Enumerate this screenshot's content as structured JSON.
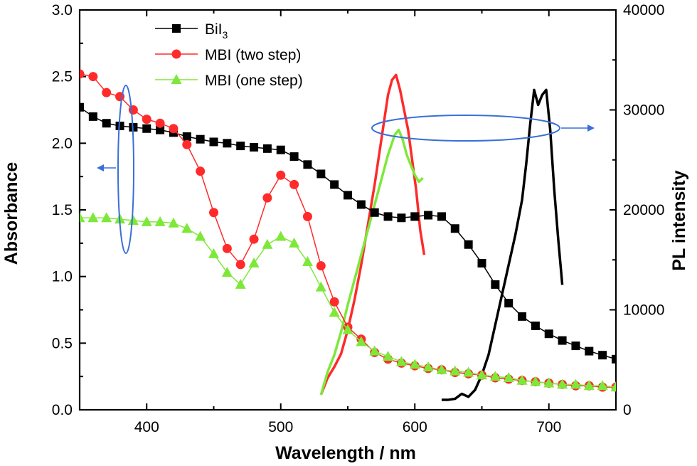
{
  "chart_data": {
    "type": "line",
    "xlabel": "Wavelength / nm",
    "ylabel_left": "Absorbance",
    "ylabel_right": "PL intensity",
    "xlim": [
      350,
      750
    ],
    "ylim_left": [
      0,
      3.0
    ],
    "ylim_right": [
      0,
      40000
    ],
    "x_ticks": [
      "400",
      "500",
      "600",
      "700"
    ],
    "y_ticks_left": [
      "0.0",
      "0.5",
      "1.0",
      "1.5",
      "2.0",
      "2.5",
      "3.0"
    ],
    "y_ticks_right": [
      "0",
      "10000",
      "20000",
      "30000",
      "40000"
    ],
    "legend_position": "top-left",
    "legend": [
      {
        "label": "BiI",
        "subscript": "3",
        "marker": "square",
        "color": "#000000"
      },
      {
        "label": "MBI (two step)",
        "subscript": "",
        "marker": "circle",
        "color": "#ff2a2a"
      },
      {
        "label": "MBI (one step)",
        "subscript": "",
        "marker": "triangle",
        "color": "#7ee83a"
      }
    ],
    "absorbance_series": [
      {
        "name": "BiI3",
        "color": "#000000",
        "marker": "square",
        "x": [
          350,
          360,
          370,
          380,
          390,
          400,
          410,
          420,
          430,
          440,
          450,
          460,
          470,
          480,
          490,
          500,
          510,
          520,
          530,
          540,
          550,
          560,
          570,
          580,
          590,
          600,
          610,
          620,
          630,
          640,
          650,
          660,
          670,
          680,
          690,
          700,
          710,
          720,
          730,
          740,
          750
        ],
        "y": [
          2.27,
          2.2,
          2.15,
          2.13,
          2.12,
          2.11,
          2.1,
          2.08,
          2.05,
          2.03,
          2.01,
          2.0,
          1.98,
          1.97,
          1.96,
          1.95,
          1.9,
          1.84,
          1.77,
          1.69,
          1.61,
          1.54,
          1.48,
          1.45,
          1.44,
          1.45,
          1.46,
          1.45,
          1.36,
          1.24,
          1.1,
          0.94,
          0.8,
          0.7,
          0.63,
          0.57,
          0.52,
          0.48,
          0.44,
          0.41,
          0.38
        ]
      },
      {
        "name": "MBI (two step)",
        "color": "#ff2a2a",
        "marker": "circle",
        "x": [
          350,
          360,
          370,
          380,
          390,
          400,
          410,
          420,
          430,
          440,
          450,
          460,
          470,
          480,
          490,
          500,
          510,
          520,
          530,
          540,
          550,
          560,
          570,
          580,
          590,
          600,
          610,
          620,
          630,
          640,
          650,
          660,
          670,
          680,
          690,
          700,
          710,
          720,
          730,
          740,
          750
        ],
        "y": [
          2.52,
          2.5,
          2.38,
          2.35,
          2.25,
          2.18,
          2.15,
          2.11,
          1.99,
          1.79,
          1.48,
          1.21,
          1.09,
          1.28,
          1.59,
          1.76,
          1.69,
          1.45,
          1.08,
          0.81,
          0.62,
          0.53,
          0.43,
          0.38,
          0.35,
          0.33,
          0.31,
          0.3,
          0.28,
          0.27,
          0.26,
          0.24,
          0.23,
          0.22,
          0.21,
          0.2,
          0.19,
          0.18,
          0.18,
          0.17,
          0.17
        ]
      },
      {
        "name": "MBI (one step)",
        "color": "#7ee83a",
        "marker": "triangle",
        "x": [
          350,
          360,
          370,
          380,
          390,
          400,
          410,
          420,
          430,
          440,
          450,
          460,
          470,
          480,
          490,
          500,
          510,
          520,
          530,
          540,
          550,
          560,
          570,
          580,
          590,
          600,
          610,
          620,
          630,
          640,
          650,
          660,
          670,
          680,
          690,
          700,
          710,
          720,
          730,
          740,
          750
        ],
        "y": [
          1.44,
          1.44,
          1.44,
          1.43,
          1.42,
          1.41,
          1.41,
          1.4,
          1.36,
          1.3,
          1.17,
          1.03,
          0.94,
          1.1,
          1.24,
          1.3,
          1.25,
          1.11,
          0.92,
          0.73,
          0.6,
          0.51,
          0.44,
          0.4,
          0.36,
          0.34,
          0.32,
          0.3,
          0.29,
          0.28,
          0.26,
          0.25,
          0.24,
          0.22,
          0.21,
          0.2,
          0.19,
          0.19,
          0.18,
          0.18,
          0.17
        ]
      }
    ],
    "pl_series": [
      {
        "name": "BiI3 PL",
        "color": "#000000",
        "x": [
          620,
          625,
          630,
          635,
          640,
          645,
          650,
          655,
          660,
          665,
          670,
          675,
          680,
          683,
          686,
          689,
          692,
          695,
          698,
          701,
          704,
          707,
          710
        ],
        "y": [
          1000,
          1000,
          1100,
          1600,
          1300,
          2000,
          3500,
          5500,
          8500,
          11500,
          14500,
          17500,
          21000,
          24500,
          28500,
          32000,
          30500,
          31500,
          32000,
          28000,
          22000,
          17000,
          12500
        ]
      },
      {
        "name": "MBI (two step) PL",
        "color": "#ff2a2a",
        "x": [
          530,
          535,
          540,
          545,
          550,
          555,
          560,
          565,
          570,
          575,
          580,
          583,
          586,
          589,
          592,
          595,
          598,
          601,
          604,
          607
        ],
        "y": [
          1500,
          3200,
          4300,
          5600,
          8000,
          11000,
          14500,
          18500,
          22500,
          27000,
          31500,
          33000,
          33500,
          32000,
          30000,
          28000,
          25000,
          22000,
          18000,
          15500
        ]
      },
      {
        "name": "MBI (one step) PL",
        "color": "#7ee83a",
        "x": [
          530,
          535,
          540,
          545,
          550,
          555,
          560,
          565,
          570,
          575,
          580,
          585,
          588,
          591,
          594,
          597,
          600,
          603,
          606
        ],
        "y": [
          1500,
          3800,
          5500,
          7800,
          10500,
          13000,
          15500,
          18000,
          20500,
          23000,
          25500,
          27500,
          28000,
          27000,
          25500,
          24500,
          23500,
          22800,
          23200
        ]
      }
    ]
  }
}
